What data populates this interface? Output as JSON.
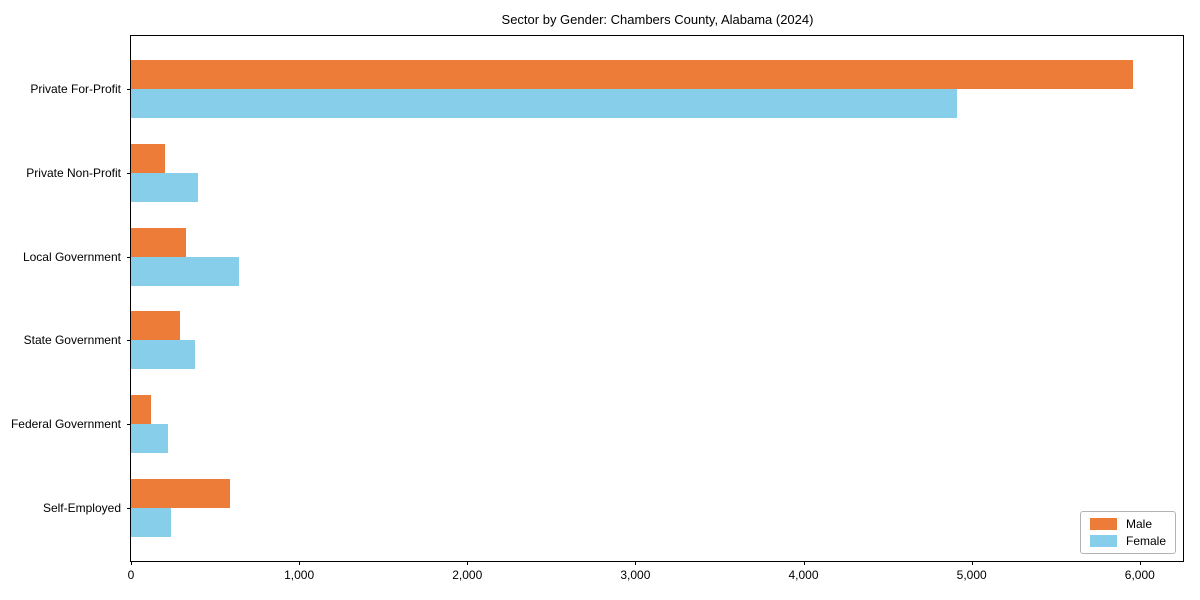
{
  "figure": {
    "title": "Sector by Gender: Chambers County, Alabama (2024)"
  },
  "chart_data": {
    "type": "bar",
    "orientation": "horizontal",
    "title": "Sector by Gender: Chambers County, Alabama (2024)",
    "categories": [
      "Private For-Profit",
      "Private Non-Profit",
      "Local Government",
      "State Government",
      "Federal Government",
      "Self-Employed"
    ],
    "series": [
      {
        "name": "Male",
        "color": "#ED7C39",
        "values": [
          5960,
          200,
          330,
          290,
          120,
          590
        ]
      },
      {
        "name": "Female",
        "color": "#87CEEB",
        "values": [
          4915,
          400,
          640,
          380,
          220,
          240
        ]
      }
    ],
    "xlabel": "",
    "ylabel": "",
    "xlim": [
      0,
      6257
    ],
    "x_ticks": [
      0,
      1000,
      2000,
      3000,
      4000,
      5000,
      6000
    ],
    "x_tick_labels": [
      "0",
      "1,000",
      "2,000",
      "3,000",
      "4,000",
      "5,000",
      "6,000"
    ],
    "grid": false,
    "legend": {
      "position": "lower right",
      "entries": [
        "Male",
        "Female"
      ]
    }
  }
}
